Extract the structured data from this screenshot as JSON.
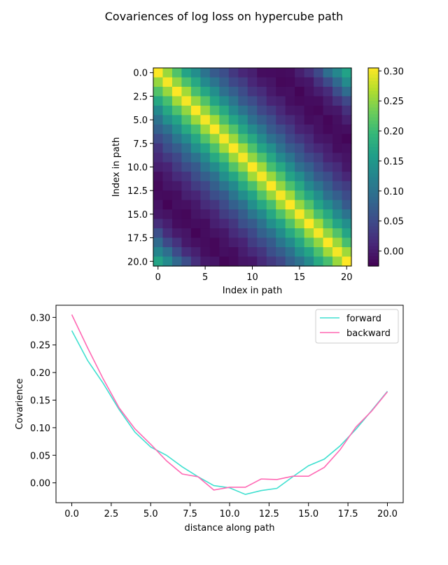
{
  "title": "Covariences of log loss on hypercube path",
  "chart_data": [
    {
      "type": "heatmap",
      "xlabel": "Index in path",
      "ylabel": "Index in path",
      "size": 21,
      "xticks": [
        0,
        5,
        10,
        15,
        20
      ],
      "xtick_labels": [
        "0",
        "5",
        "10",
        "15",
        "20"
      ],
      "yticks": [
        0,
        2.5,
        5,
        7.5,
        10,
        12.5,
        15,
        17.5,
        20
      ],
      "ytick_labels": [
        "0.0",
        "2.5",
        "5.0",
        "7.5",
        "10.0",
        "12.5",
        "15.0",
        "17.5",
        "20.0"
      ],
      "colormap": "viridis",
      "color_range": [
        -0.025,
        0.305
      ],
      "colorbar_ticks": [
        0.0,
        0.05,
        0.1,
        0.15,
        0.2,
        0.25,
        0.3
      ],
      "colorbar_tick_labels": [
        "0.00",
        "0.05",
        "0.10",
        "0.15",
        "0.20",
        "0.25",
        "0.30"
      ],
      "values_by_distance": [
        0.305,
        0.255,
        0.21,
        0.17,
        0.135,
        0.1,
        0.072,
        0.05,
        0.03,
        0.012,
        0.0,
        -0.01,
        -0.015,
        -0.018,
        -0.01,
        0.0,
        0.02,
        0.05,
        0.09,
        0.13,
        0.165
      ]
    },
    {
      "type": "line",
      "xlabel": "distance along path",
      "ylabel": "Covarience",
      "x": [
        0,
        1,
        2,
        3,
        4,
        5,
        6,
        7,
        8,
        9,
        10,
        11,
        12,
        13,
        14,
        15,
        16,
        17,
        18,
        19,
        20
      ],
      "series": [
        {
          "name": "forward",
          "color": "#40e0d0",
          "values": [
            0.276,
            0.222,
            0.18,
            0.133,
            0.092,
            0.065,
            0.05,
            0.029,
            0.011,
            -0.005,
            -0.009,
            -0.021,
            -0.014,
            -0.01,
            0.011,
            0.031,
            0.043,
            0.067,
            0.097,
            0.131,
            0.166
          ]
        },
        {
          "name": "backward",
          "color": "#ff69b4",
          "values": [
            0.305,
            0.245,
            0.188,
            0.136,
            0.098,
            0.07,
            0.04,
            0.016,
            0.011,
            -0.013,
            -0.008,
            -0.008,
            0.007,
            0.006,
            0.012,
            0.012,
            0.028,
            0.06,
            0.101,
            0.13,
            0.165
          ]
        }
      ],
      "xlim": [
        -1,
        21
      ],
      "ylim": [
        -0.036,
        0.322
      ],
      "xticks": [
        0,
        2.5,
        5,
        7.5,
        10,
        12.5,
        15,
        17.5,
        20
      ],
      "xtick_labels": [
        "0.0",
        "2.5",
        "5.0",
        "7.5",
        "10.0",
        "12.5",
        "15.0",
        "17.5",
        "20.0"
      ],
      "yticks": [
        0,
        0.05,
        0.1,
        0.15,
        0.2,
        0.25,
        0.3
      ],
      "ytick_labels": [
        "0.00",
        "0.05",
        "0.10",
        "0.15",
        "0.20",
        "0.25",
        "0.30"
      ],
      "legend": "top-right"
    }
  ]
}
